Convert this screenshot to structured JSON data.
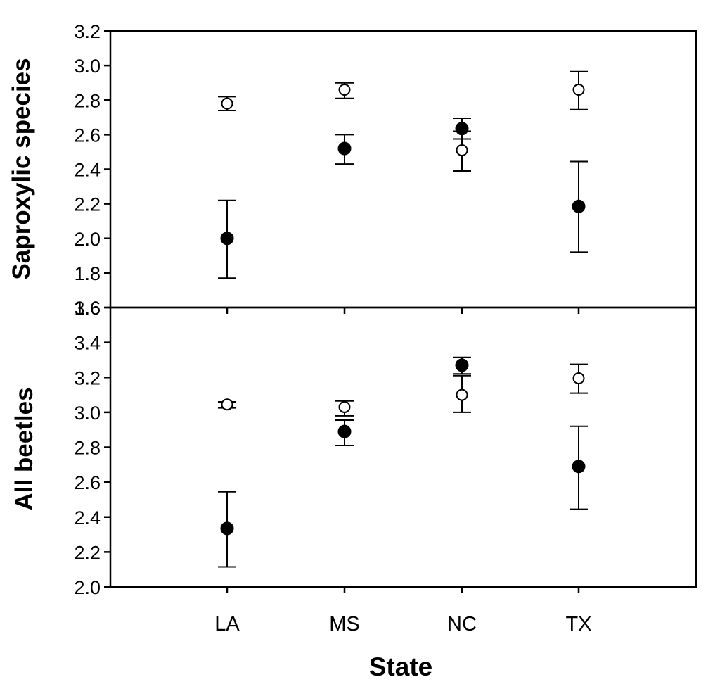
{
  "chart_data": [
    {
      "type": "scatter",
      "panel": "top",
      "ylabel": "Saproxylic species",
      "xlabel": "",
      "categories": [
        "LA",
        "MS",
        "NC",
        "TX"
      ],
      "ylim": [
        1.6,
        3.2
      ],
      "yticks": [
        1.6,
        1.8,
        2.0,
        2.2,
        2.4,
        2.6,
        2.8,
        3.0,
        3.2
      ],
      "ytick_labels": [
        "1.6",
        "1.8",
        "2.0",
        "2.2",
        "2.4",
        "2.6",
        "2.8",
        "3.0",
        "3.2"
      ],
      "series": [
        {
          "marker": "filled",
          "values": [
            2.0,
            2.52,
            2.635,
            2.185
          ],
          "err_low": [
            1.77,
            2.43,
            2.575,
            1.92
          ],
          "err_high": [
            2.22,
            2.6,
            2.695,
            2.445
          ]
        },
        {
          "marker": "open",
          "values": [
            2.78,
            2.86,
            2.51,
            2.86
          ],
          "err_low": [
            2.74,
            2.81,
            2.39,
            2.745
          ],
          "err_high": [
            2.82,
            2.9,
            2.62,
            2.965
          ]
        }
      ]
    },
    {
      "type": "scatter",
      "panel": "bottom",
      "ylabel": "All beetles",
      "xlabel": "State",
      "categories": [
        "LA",
        "MS",
        "NC",
        "TX"
      ],
      "ylim": [
        2.0,
        3.6
      ],
      "yticks": [
        2.0,
        2.2,
        2.4,
        2.6,
        2.8,
        3.0,
        3.2,
        3.4,
        3.6
      ],
      "ytick_labels": [
        "2.0",
        "2.2",
        "2.4",
        "2.6",
        "2.8",
        "3.0",
        "3.2",
        "3.4",
        "3.6"
      ],
      "series": [
        {
          "marker": "filled",
          "values": [
            2.335,
            2.89,
            3.27,
            2.69
          ],
          "err_low": [
            2.115,
            2.81,
            3.22,
            2.445
          ],
          "err_high": [
            2.545,
            2.955,
            3.315,
            2.92
          ]
        },
        {
          "marker": "open",
          "values": [
            3.045,
            3.03,
            3.1,
            3.195
          ],
          "err_low": [
            3.025,
            2.98,
            3.0,
            3.11
          ],
          "err_high": [
            3.06,
            3.065,
            3.21,
            3.275
          ]
        }
      ]
    }
  ]
}
